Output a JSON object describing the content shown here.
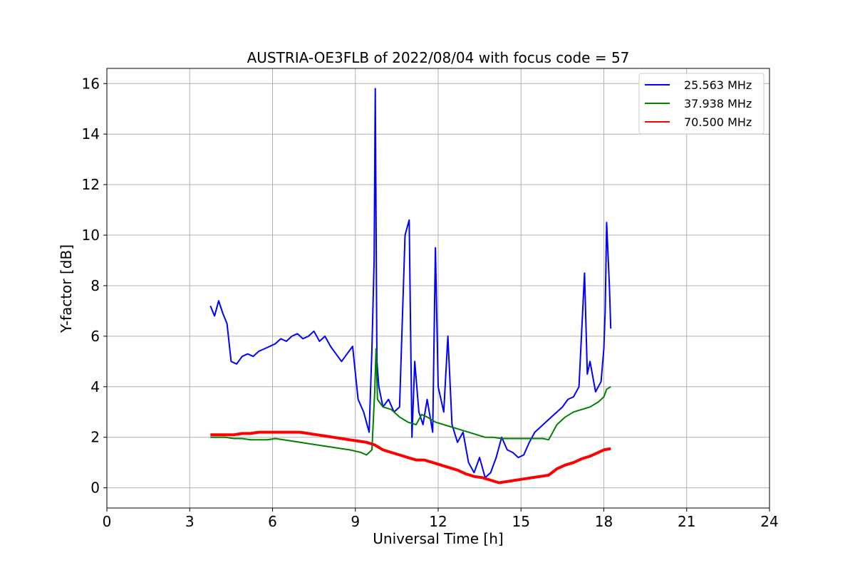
{
  "chart_data": {
    "type": "line",
    "title": "AUSTRIA-OE3FLB of 2022/08/04 with focus code = 57",
    "xlabel": "Universal Time [h]",
    "ylabel": "Y-factor [dB]",
    "xlim": [
      0,
      24
    ],
    "ylim": [
      -0.8,
      16.6
    ],
    "xticks": [
      0,
      3,
      6,
      9,
      12,
      15,
      18,
      21,
      24
    ],
    "yticks": [
      0,
      2,
      4,
      6,
      8,
      10,
      12,
      14,
      16
    ],
    "grid": true,
    "legend_position": "top-right",
    "series": [
      {
        "name": "25.563 MHz",
        "color": "#0000ff",
        "x": [
          3.75,
          3.9,
          4.05,
          4.2,
          4.35,
          4.5,
          4.7,
          4.9,
          5.1,
          5.3,
          5.5,
          5.7,
          5.9,
          6.1,
          6.3,
          6.5,
          6.7,
          6.9,
          7.1,
          7.3,
          7.5,
          7.7,
          7.9,
          8.1,
          8.3,
          8.5,
          8.7,
          8.9,
          9.1,
          9.3,
          9.5,
          9.6,
          9.68,
          9.72,
          9.78,
          9.85,
          10.0,
          10.2,
          10.4,
          10.6,
          10.8,
          10.95,
          11.05,
          11.15,
          11.3,
          11.45,
          11.6,
          11.8,
          11.9,
          12.0,
          12.2,
          12.35,
          12.5,
          12.7,
          12.9,
          13.1,
          13.3,
          13.5,
          13.7,
          13.9,
          14.1,
          14.3,
          14.5,
          14.7,
          14.9,
          15.1,
          15.3,
          15.5,
          15.7,
          15.9,
          16.1,
          16.3,
          16.5,
          16.7,
          16.9,
          17.1,
          17.3,
          17.4,
          17.5,
          17.7,
          17.9,
          18.0,
          18.05,
          18.1,
          18.2,
          18.25
        ],
        "y": [
          7.2,
          6.8,
          7.4,
          6.9,
          6.5,
          5.0,
          4.9,
          5.2,
          5.3,
          5.2,
          5.4,
          5.5,
          5.6,
          5.7,
          5.9,
          5.8,
          6.0,
          6.1,
          5.9,
          6.0,
          6.2,
          5.8,
          6.0,
          5.6,
          5.3,
          5.0,
          5.3,
          5.6,
          3.5,
          3.0,
          2.2,
          5.5,
          9.0,
          15.8,
          5.0,
          4.0,
          3.2,
          3.5,
          3.0,
          3.2,
          10.0,
          10.6,
          2.0,
          5.0,
          3.0,
          2.5,
          3.5,
          2.2,
          9.5,
          4.0,
          3.0,
          6.0,
          2.5,
          1.8,
          2.2,
          1.0,
          0.6,
          1.2,
          0.4,
          0.6,
          1.2,
          2.0,
          1.5,
          1.4,
          1.2,
          1.3,
          1.8,
          2.2,
          2.4,
          2.6,
          2.8,
          3.0,
          3.2,
          3.5,
          3.6,
          4.0,
          8.5,
          4.5,
          5.0,
          3.8,
          4.2,
          5.5,
          7.0,
          10.5,
          8.0,
          6.3
        ]
      },
      {
        "name": "37.938 MHz",
        "color": "#008000",
        "x": [
          3.75,
          4.0,
          4.3,
          4.6,
          4.9,
          5.2,
          5.5,
          5.8,
          6.1,
          6.4,
          6.7,
          7.0,
          7.3,
          7.6,
          7.9,
          8.2,
          8.5,
          8.8,
          9.0,
          9.2,
          9.4,
          9.6,
          9.7,
          9.75,
          9.8,
          10.0,
          10.3,
          10.6,
          10.9,
          11.2,
          11.4,
          11.6,
          11.9,
          12.2,
          12.5,
          12.8,
          13.1,
          13.4,
          13.7,
          14.0,
          14.3,
          14.6,
          14.9,
          15.2,
          15.5,
          15.8,
          16.0,
          16.3,
          16.6,
          16.9,
          17.2,
          17.5,
          17.8,
          18.0,
          18.1,
          18.25
        ],
        "y": [
          2.0,
          2.0,
          2.0,
          1.95,
          1.95,
          1.9,
          1.9,
          1.9,
          1.95,
          1.9,
          1.85,
          1.8,
          1.75,
          1.7,
          1.65,
          1.6,
          1.55,
          1.5,
          1.45,
          1.4,
          1.3,
          1.5,
          3.8,
          5.5,
          3.5,
          3.2,
          3.1,
          2.8,
          2.6,
          2.5,
          2.9,
          2.8,
          2.6,
          2.5,
          2.4,
          2.3,
          2.2,
          2.1,
          2.0,
          2.0,
          1.95,
          1.95,
          1.95,
          1.95,
          1.95,
          1.95,
          1.9,
          2.5,
          2.8,
          3.0,
          3.1,
          3.2,
          3.4,
          3.6,
          3.9,
          4.0
        ]
      },
      {
        "name": "70.500 MHz",
        "color": "#ff0000",
        "x": [
          3.75,
          4.0,
          4.3,
          4.6,
          4.9,
          5.2,
          5.5,
          5.8,
          6.1,
          6.4,
          6.7,
          7.0,
          7.3,
          7.6,
          7.9,
          8.2,
          8.5,
          8.8,
          9.1,
          9.4,
          9.7,
          10.0,
          10.3,
          10.6,
          10.9,
          11.2,
          11.5,
          11.8,
          12.1,
          12.4,
          12.7,
          13.0,
          13.3,
          13.6,
          13.9,
          14.2,
          14.5,
          14.8,
          15.1,
          15.4,
          15.7,
          16.0,
          16.3,
          16.6,
          16.9,
          17.2,
          17.5,
          17.8,
          18.0,
          18.25
        ],
        "y": [
          2.1,
          2.1,
          2.1,
          2.1,
          2.15,
          2.15,
          2.2,
          2.2,
          2.2,
          2.2,
          2.2,
          2.2,
          2.15,
          2.1,
          2.05,
          2.0,
          1.95,
          1.9,
          1.85,
          1.8,
          1.7,
          1.5,
          1.4,
          1.3,
          1.2,
          1.1,
          1.1,
          1.0,
          0.9,
          0.8,
          0.7,
          0.55,
          0.45,
          0.4,
          0.3,
          0.2,
          0.25,
          0.3,
          0.35,
          0.4,
          0.45,
          0.5,
          0.75,
          0.9,
          1.0,
          1.15,
          1.25,
          1.4,
          1.5,
          1.55
        ]
      }
    ]
  }
}
